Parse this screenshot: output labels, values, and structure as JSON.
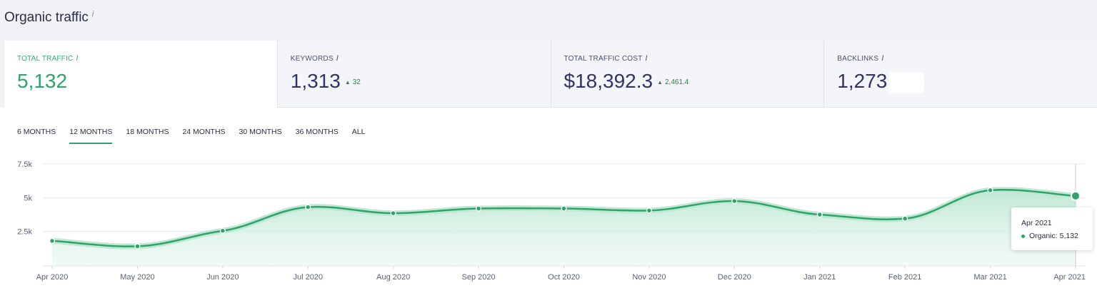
{
  "header": {
    "title": "Organic traffic",
    "info": "i"
  },
  "metrics": [
    {
      "label": "TOTAL TRAFFIC",
      "info": "i",
      "value": "5,132",
      "delta": ""
    },
    {
      "label": "KEYWORDS",
      "info": "i",
      "value": "1,313",
      "delta": "32"
    },
    {
      "label": "TOTAL TRAFFIC COST",
      "info": "i",
      "value": "$18,392.3",
      "delta": "2,461.4"
    },
    {
      "label": "BACKLINKS",
      "info": "i",
      "value": "1,273",
      "delta": ""
    }
  ],
  "periods": [
    "6 MONTHS",
    "12 MONTHS",
    "18 MONTHS",
    "24 MONTHS",
    "30 MONTHS",
    "36 MONTHS",
    "ALL"
  ],
  "active_period": "12 MONTHS",
  "tooltip": {
    "date": "Apr 2021",
    "series": "Organic:",
    "value": "5,132"
  },
  "colors": {
    "accent": "#2fa36b",
    "fill": "#cdeedd"
  },
  "chart_data": {
    "type": "area",
    "categories": [
      "Apr 2020",
      "May 2020",
      "Jun 2020",
      "Jul 2020",
      "Aug 2020",
      "Sep 2020",
      "Oct 2020",
      "Nov 2020",
      "Dec 2020",
      "Jan 2021",
      "Feb 2021",
      "Mar 2021",
      "Apr 2021"
    ],
    "series": [
      {
        "name": "Organic",
        "values": [
          1800,
          1400,
          2550,
          4300,
          3850,
          4200,
          4200,
          4050,
          4750,
          3750,
          3450,
          5550,
          5132
        ]
      }
    ],
    "yticks": [
      2500,
      5000,
      7500
    ],
    "ytick_labels": [
      "2.5k",
      "5k",
      "7.5k"
    ],
    "ylim": [
      0,
      7500
    ],
    "grid": true
  }
}
